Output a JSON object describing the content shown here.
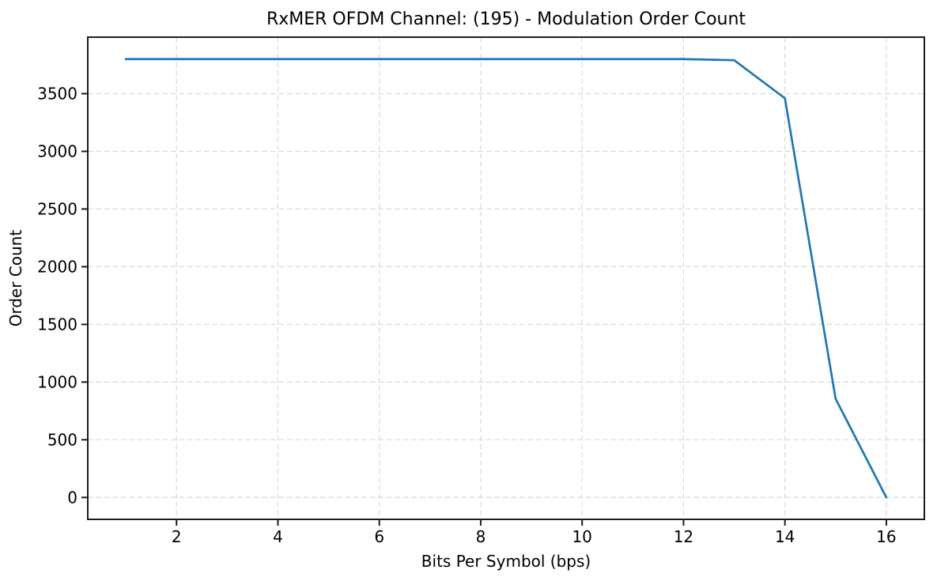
{
  "figure": {
    "background_color": "#ffffff",
    "text_color": "#000000",
    "spine_color": "#1c1c1c"
  },
  "chart_data": {
    "type": "line",
    "title": "RxMER OFDM Channel: (195) - Modulation Order Count",
    "xlabel": "Bits Per Symbol (bps)",
    "ylabel": "Order Count",
    "x": [
      1,
      2,
      3,
      4,
      5,
      6,
      7,
      8,
      9,
      10,
      11,
      12,
      13,
      14,
      15,
      16
    ],
    "y": [
      3800,
      3800,
      3800,
      3800,
      3800,
      3800,
      3800,
      3800,
      3800,
      3800,
      3800,
      3800,
      3790,
      3460,
      855,
      0
    ],
    "xlim": [
      0.25,
      16.75
    ],
    "ylim": [
      -190,
      3990
    ],
    "xticks": [
      2,
      4,
      6,
      8,
      10,
      12,
      14,
      16
    ],
    "yticks": [
      0,
      500,
      1000,
      1500,
      2000,
      2500,
      3000,
      3500
    ],
    "line_color": "#1f77b4",
    "line_width": 2.7,
    "grid": {
      "visible": true,
      "style": "dashed",
      "color": "#d9d9d9"
    },
    "legend_position": "none"
  }
}
